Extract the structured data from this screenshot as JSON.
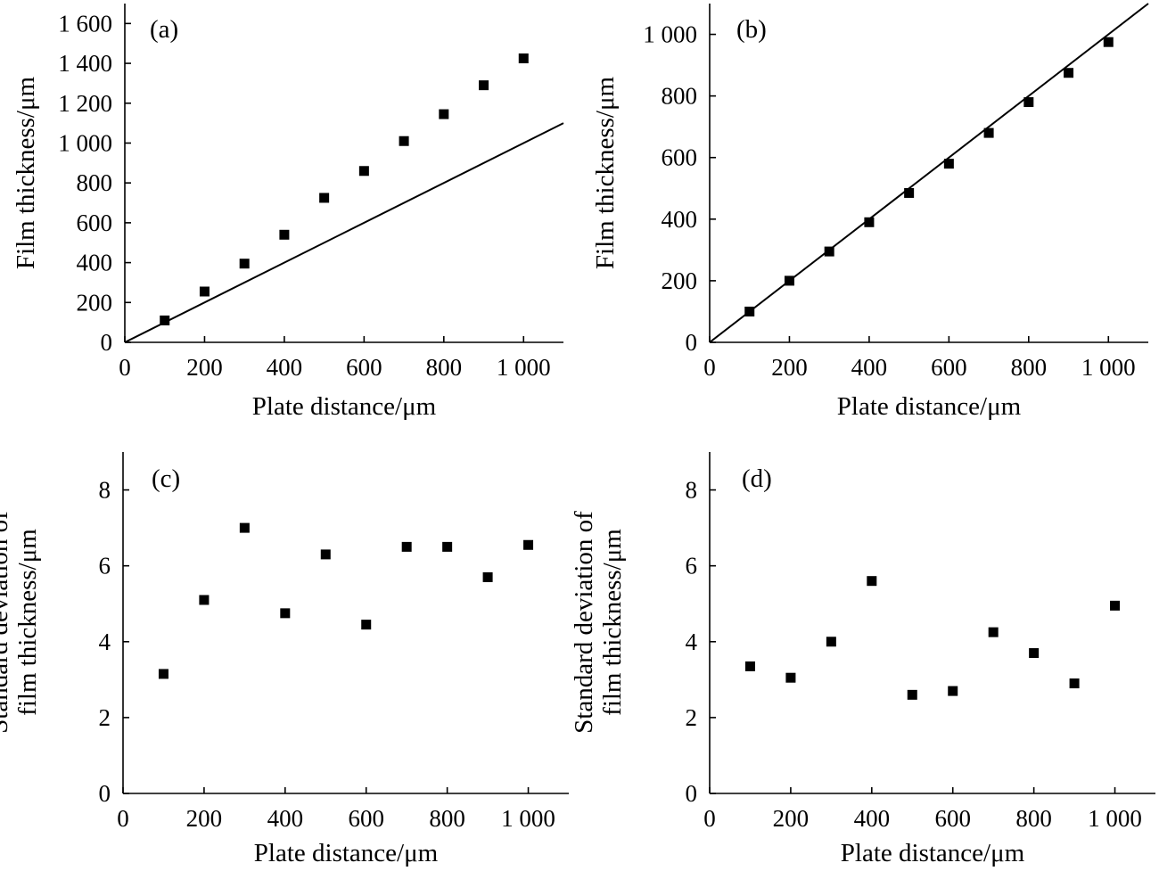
{
  "colors": {
    "marker": "#000000",
    "line": "#000000",
    "background": "#ffffff"
  },
  "chart_data": [
    {
      "id": "a",
      "type": "scatter",
      "panel_label": "(a)",
      "xlabel": "Plate distance/μm",
      "ylabel": [
        "Film thickness/μm"
      ],
      "xlim": [
        0,
        1100
      ],
      "ylim": [
        0,
        1700
      ],
      "xticks": [
        0,
        200,
        400,
        600,
        800,
        1000
      ],
      "xtick_labels": [
        "0",
        "200",
        "400",
        "600",
        "800",
        "1 000"
      ],
      "yticks": [
        0,
        200,
        400,
        600,
        800,
        1000,
        1200,
        1400,
        1600
      ],
      "ytick_labels": [
        "0",
        "200",
        "400",
        "600",
        "800",
        "1 000",
        "1 200",
        "1 400",
        "1 600"
      ],
      "grid": false,
      "reference_line": {
        "type": "y=x",
        "from": [
          0,
          0
        ],
        "to": [
          1100,
          1100
        ]
      },
      "series": [
        {
          "marker": "square",
          "x": [
            100,
            200,
            300,
            400,
            500,
            600,
            700,
            800,
            900,
            1000
          ],
          "y": [
            110,
            255,
            395,
            540,
            725,
            860,
            1010,
            1145,
            1290,
            1425
          ]
        }
      ]
    },
    {
      "id": "b",
      "type": "scatter",
      "panel_label": "(b)",
      "xlabel": "Plate distance/μm",
      "ylabel": [
        "Film thickness/μm"
      ],
      "xlim": [
        0,
        1100
      ],
      "ylim": [
        0,
        1100
      ],
      "xticks": [
        0,
        200,
        400,
        600,
        800,
        1000
      ],
      "xtick_labels": [
        "0",
        "200",
        "400",
        "600",
        "800",
        "1 000"
      ],
      "yticks": [
        0,
        200,
        400,
        600,
        800,
        1000
      ],
      "ytick_labels": [
        "0",
        "200",
        "400",
        "600",
        "800",
        "1 000"
      ],
      "grid": false,
      "reference_line": {
        "type": "y=x",
        "from": [
          0,
          0
        ],
        "to": [
          1100,
          1100
        ]
      },
      "series": [
        {
          "marker": "square",
          "x": [
            100,
            200,
            300,
            400,
            500,
            600,
            700,
            800,
            900,
            1000
          ],
          "y": [
            100,
            200,
            295,
            390,
            485,
            580,
            680,
            780,
            875,
            975
          ]
        }
      ]
    },
    {
      "id": "c",
      "type": "scatter",
      "panel_label": "(c)",
      "xlabel": "Plate distance/μm",
      "ylabel": [
        "Standard deviation of",
        "film thickness/μm"
      ],
      "xlim": [
        0,
        1100
      ],
      "ylim": [
        0,
        9
      ],
      "xticks": [
        0,
        200,
        400,
        600,
        800,
        1000
      ],
      "xtick_labels": [
        "0",
        "200",
        "400",
        "600",
        "800",
        "1 000"
      ],
      "yticks": [
        0,
        2,
        4,
        6,
        8
      ],
      "ytick_labels": [
        "0",
        "2",
        "4",
        "6",
        "8"
      ],
      "grid": false,
      "series": [
        {
          "marker": "square",
          "x": [
            100,
            200,
            300,
            400,
            500,
            600,
            700,
            800,
            900,
            1000
          ],
          "y": [
            3.15,
            5.1,
            7.0,
            4.75,
            6.3,
            4.45,
            6.5,
            6.5,
            5.7,
            6.55
          ]
        }
      ]
    },
    {
      "id": "d",
      "type": "scatter",
      "panel_label": "(d)",
      "xlabel": "Plate distance/μm",
      "ylabel": [
        "Standard deviation of",
        "film thickness/μm"
      ],
      "xlim": [
        0,
        1100
      ],
      "ylim": [
        0,
        9
      ],
      "xticks": [
        0,
        200,
        400,
        600,
        800,
        1000
      ],
      "xtick_labels": [
        "0",
        "200",
        "400",
        "600",
        "800",
        "1 000"
      ],
      "yticks": [
        0,
        2,
        4,
        6,
        8
      ],
      "ytick_labels": [
        "0",
        "2",
        "4",
        "6",
        "8"
      ],
      "grid": false,
      "series": [
        {
          "marker": "square",
          "x": [
            100,
            200,
            300,
            400,
            500,
            600,
            700,
            800,
            900,
            1000
          ],
          "y": [
            3.35,
            3.05,
            4.0,
            5.6,
            2.6,
            2.7,
            4.25,
            3.7,
            2.9,
            4.95
          ]
        }
      ]
    }
  ]
}
